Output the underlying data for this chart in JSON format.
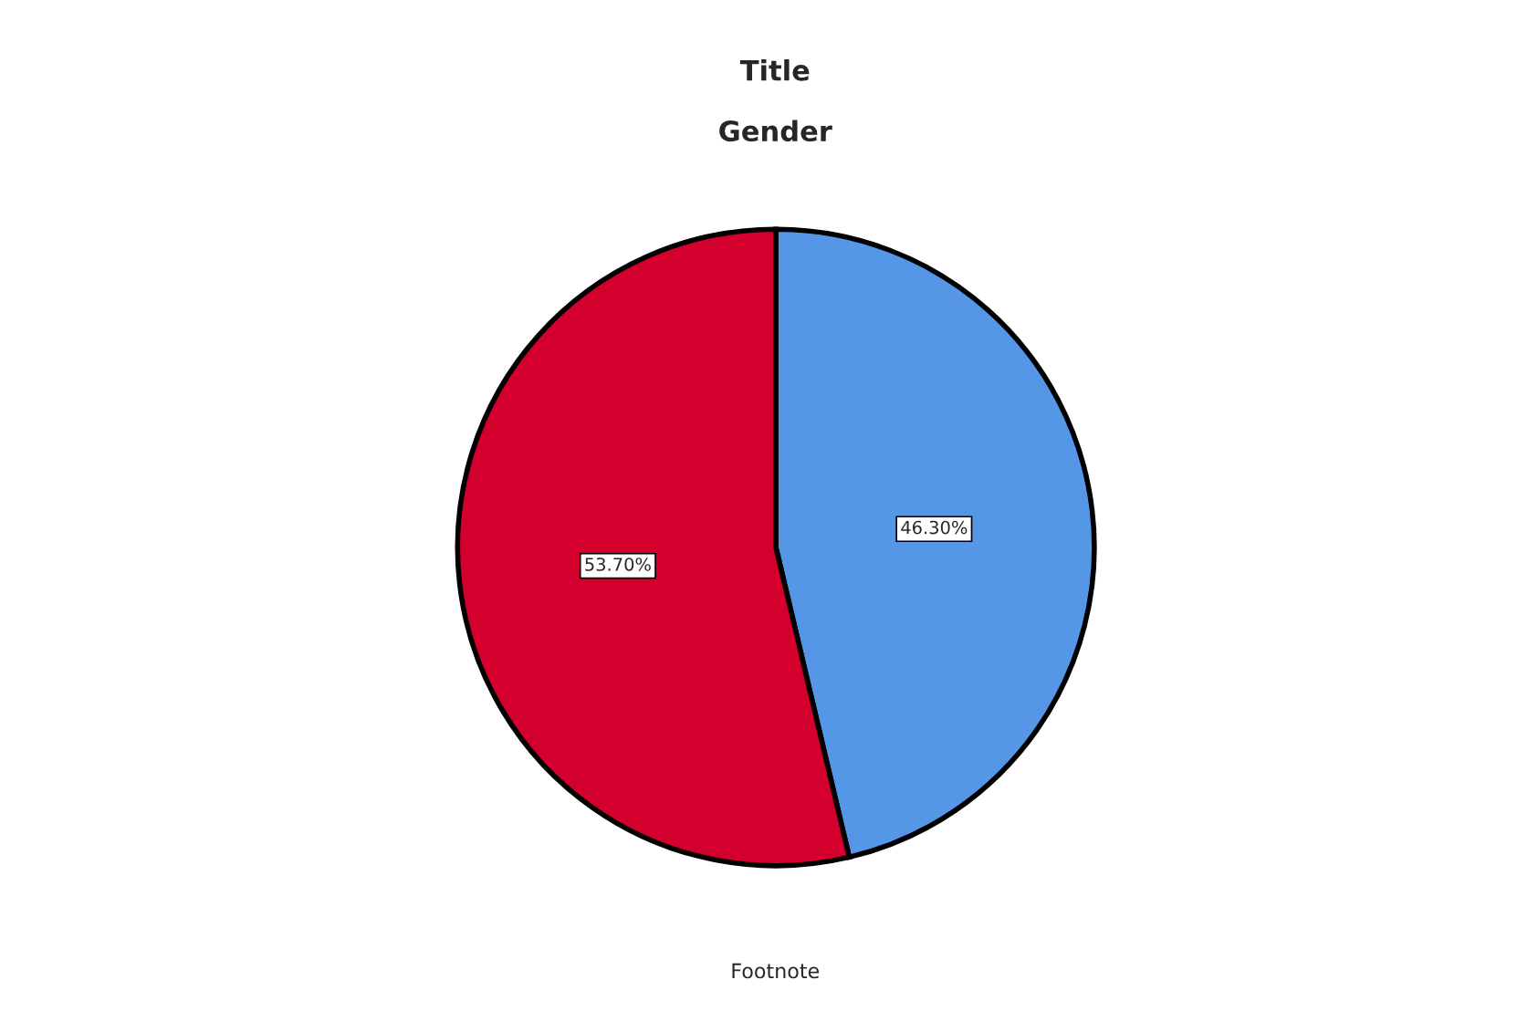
{
  "chart_data": {
    "type": "pie",
    "title": "Title",
    "subtitle": "Gender",
    "categories": [
      null,
      null
    ],
    "values": [
      46.3,
      53.7
    ],
    "colors": [
      "#5596e6",
      "#d3002e"
    ],
    "value_labels": [
      "46.30%",
      "53.70%"
    ],
    "annotations": [
      "Footnote"
    ]
  }
}
